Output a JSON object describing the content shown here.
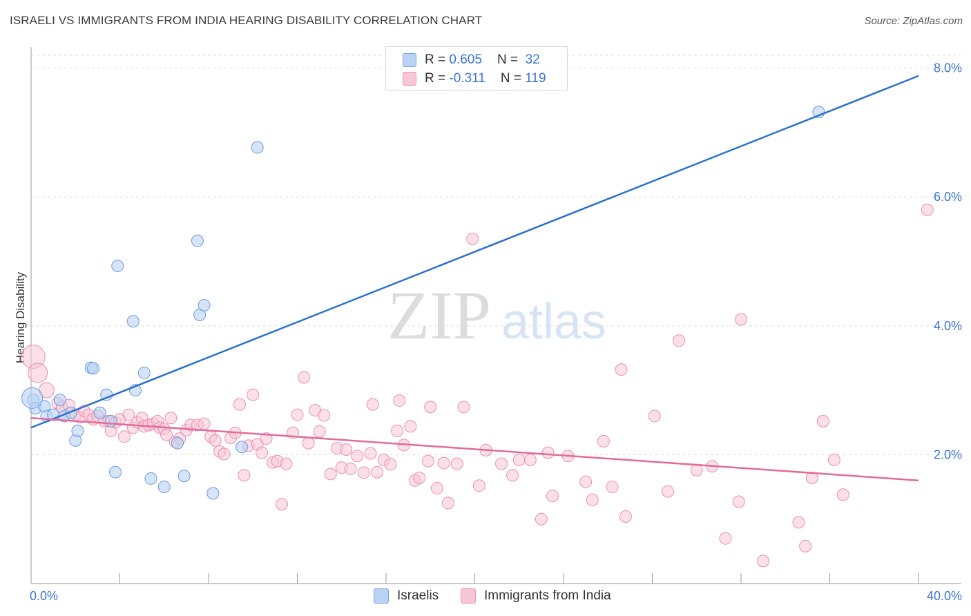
{
  "title": "ISRAELI VS IMMIGRANTS FROM INDIA HEARING DISABILITY CORRELATION CHART",
  "source": "Source: ZipAtlas.com",
  "watermark": {
    "zip": "ZIP",
    "atlas": "atlas"
  },
  "legend": {
    "r_label": "R =",
    "n_label": "N =",
    "rows": [
      {
        "r": "0.605",
        "n": "32",
        "swatch_fill": "#b9d2f5",
        "swatch_stroke": "#7aa5e0"
      },
      {
        "r": "-0.311",
        "n": "119",
        "swatch_fill": "#f8c6d6",
        "swatch_stroke": "#ec93b2"
      }
    ]
  },
  "colors": {
    "israeli_fill": "#b9d2f5",
    "israeli_stroke": "#6b9bdc",
    "israeli_line": "#2a70d0",
    "india_fill": "#f8c6d6",
    "india_stroke": "#ea8fb0",
    "india_line": "#e36b99",
    "axis_text": "#3a74d6",
    "grid": "#dddddd"
  },
  "chart_data": {
    "type": "scatter",
    "title": "ISRAELI VS IMMIGRANTS FROM INDIA HEARING DISABILITY CORRELATION CHART",
    "xlabel": "",
    "ylabel": "Hearing Disability",
    "xlim": [
      0,
      40
    ],
    "ylim": [
      0,
      8.2
    ],
    "x_tick_labels": [
      "0.0%",
      "40.0%"
    ],
    "y_tick_values": [
      2,
      4,
      6,
      8
    ],
    "y_tick_labels": [
      "2.0%",
      "4.0%",
      "6.0%",
      "8.0%"
    ],
    "grid": true,
    "legend_placement": "top-center",
    "series": [
      {
        "name": "Israelis",
        "r": 0.605,
        "n": 32,
        "trend": {
          "x": [
            0,
            40
          ],
          "y": [
            2.42,
            7.88
          ]
        },
        "points": [
          [
            0.1,
            2.85
          ],
          [
            0.2,
            2.72
          ],
          [
            0.6,
            2.75
          ],
          [
            0.7,
            2.6
          ],
          [
            1.0,
            2.62
          ],
          [
            1.3,
            2.85
          ],
          [
            1.5,
            2.6
          ],
          [
            1.8,
            2.65
          ],
          [
            2.0,
            2.22
          ],
          [
            2.1,
            2.37
          ],
          [
            2.7,
            3.35
          ],
          [
            2.8,
            3.34
          ],
          [
            3.1,
            2.65
          ],
          [
            3.4,
            2.93
          ],
          [
            3.6,
            2.52
          ],
          [
            3.8,
            1.73
          ],
          [
            3.9,
            4.93
          ],
          [
            4.6,
            4.07
          ],
          [
            4.7,
            3.0
          ],
          [
            5.1,
            3.27
          ],
          [
            5.4,
            1.63
          ],
          [
            6.0,
            1.5
          ],
          [
            6.6,
            2.18
          ],
          [
            6.9,
            1.67
          ],
          [
            7.5,
            5.32
          ],
          [
            7.6,
            4.17
          ],
          [
            7.8,
            4.32
          ],
          [
            8.2,
            1.4
          ],
          [
            9.5,
            2.12
          ],
          [
            10.2,
            6.77
          ],
          [
            35.5,
            7.32
          ],
          [
            0.05,
            2.88
          ]
        ]
      },
      {
        "name": "Immigrants from India",
        "r": -0.311,
        "n": 119,
        "trend": {
          "x": [
            0,
            40
          ],
          "y": [
            2.57,
            1.6
          ]
        },
        "points": [
          [
            0.1,
            3.52
          ],
          [
            0.3,
            3.27
          ],
          [
            0.7,
            3.0
          ],
          [
            1.2,
            2.8
          ],
          [
            1.4,
            2.74
          ],
          [
            1.5,
            2.6
          ],
          [
            1.7,
            2.77
          ],
          [
            2.0,
            2.62
          ],
          [
            2.2,
            2.58
          ],
          [
            2.4,
            2.68
          ],
          [
            2.6,
            2.62
          ],
          [
            2.8,
            2.55
          ],
          [
            3.0,
            2.6
          ],
          [
            3.3,
            2.52
          ],
          [
            3.5,
            2.52
          ],
          [
            3.6,
            2.37
          ],
          [
            3.8,
            2.5
          ],
          [
            4.0,
            2.55
          ],
          [
            4.2,
            2.28
          ],
          [
            4.4,
            2.62
          ],
          [
            4.6,
            2.42
          ],
          [
            4.8,
            2.5
          ],
          [
            5.0,
            2.57
          ],
          [
            5.1,
            2.44
          ],
          [
            5.3,
            2.46
          ],
          [
            5.5,
            2.48
          ],
          [
            5.7,
            2.52
          ],
          [
            5.8,
            2.42
          ],
          [
            6.0,
            2.4
          ],
          [
            6.1,
            2.31
          ],
          [
            6.3,
            2.57
          ],
          [
            6.5,
            2.2
          ],
          [
            6.7,
            2.25
          ],
          [
            7.0,
            2.38
          ],
          [
            7.2,
            2.46
          ],
          [
            7.5,
            2.46
          ],
          [
            7.8,
            2.48
          ],
          [
            8.1,
            2.28
          ],
          [
            8.3,
            2.22
          ],
          [
            8.5,
            2.05
          ],
          [
            8.7,
            2.01
          ],
          [
            9.0,
            2.26
          ],
          [
            9.2,
            2.34
          ],
          [
            9.4,
            2.78
          ],
          [
            9.6,
            1.68
          ],
          [
            9.8,
            2.14
          ],
          [
            10.0,
            2.93
          ],
          [
            10.2,
            2.16
          ],
          [
            10.4,
            2.03
          ],
          [
            10.6,
            2.25
          ],
          [
            10.9,
            1.88
          ],
          [
            11.1,
            1.9
          ],
          [
            11.3,
            1.23
          ],
          [
            11.5,
            1.86
          ],
          [
            11.8,
            2.34
          ],
          [
            12.0,
            2.62
          ],
          [
            12.3,
            3.2
          ],
          [
            12.5,
            2.18
          ],
          [
            12.8,
            2.69
          ],
          [
            13.0,
            2.36
          ],
          [
            13.2,
            2.61
          ],
          [
            13.5,
            1.7
          ],
          [
            13.8,
            2.1
          ],
          [
            14.0,
            1.8
          ],
          [
            14.2,
            2.08
          ],
          [
            14.4,
            1.78
          ],
          [
            14.7,
            1.98
          ],
          [
            15.0,
            1.72
          ],
          [
            15.3,
            2.02
          ],
          [
            15.4,
            2.78
          ],
          [
            15.6,
            1.73
          ],
          [
            15.9,
            1.92
          ],
          [
            16.2,
            1.85
          ],
          [
            16.5,
            2.37
          ],
          [
            16.6,
            2.84
          ],
          [
            16.8,
            2.15
          ],
          [
            17.1,
            2.44
          ],
          [
            17.3,
            1.6
          ],
          [
            17.5,
            1.64
          ],
          [
            17.9,
            1.9
          ],
          [
            18.0,
            2.74
          ],
          [
            18.3,
            1.48
          ],
          [
            18.6,
            1.87
          ],
          [
            18.8,
            1.25
          ],
          [
            19.2,
            1.86
          ],
          [
            19.5,
            2.74
          ],
          [
            19.9,
            5.35
          ],
          [
            20.2,
            1.52
          ],
          [
            20.5,
            2.07
          ],
          [
            21.2,
            1.86
          ],
          [
            21.7,
            1.68
          ],
          [
            22.0,
            1.92
          ],
          [
            22.5,
            1.92
          ],
          [
            23.0,
            1.0
          ],
          [
            23.3,
            2.03
          ],
          [
            23.5,
            1.36
          ],
          [
            24.2,
            1.98
          ],
          [
            25.0,
            1.58
          ],
          [
            25.3,
            1.3
          ],
          [
            25.8,
            2.21
          ],
          [
            26.2,
            1.5
          ],
          [
            26.6,
            3.32
          ],
          [
            26.8,
            1.04
          ],
          [
            28.1,
            2.6
          ],
          [
            28.7,
            1.43
          ],
          [
            29.2,
            3.77
          ],
          [
            30.0,
            1.76
          ],
          [
            30.7,
            1.82
          ],
          [
            31.3,
            0.7
          ],
          [
            31.9,
            1.27
          ],
          [
            32.0,
            4.1
          ],
          [
            33.0,
            0.35
          ],
          [
            34.6,
            0.95
          ],
          [
            34.9,
            0.58
          ],
          [
            35.2,
            1.64
          ],
          [
            35.7,
            2.52
          ],
          [
            36.2,
            1.92
          ],
          [
            36.6,
            1.38
          ],
          [
            40.4,
            5.8
          ]
        ]
      }
    ]
  },
  "bottom_legend": {
    "israelis": "Israelis",
    "india": "Immigrants from India"
  }
}
